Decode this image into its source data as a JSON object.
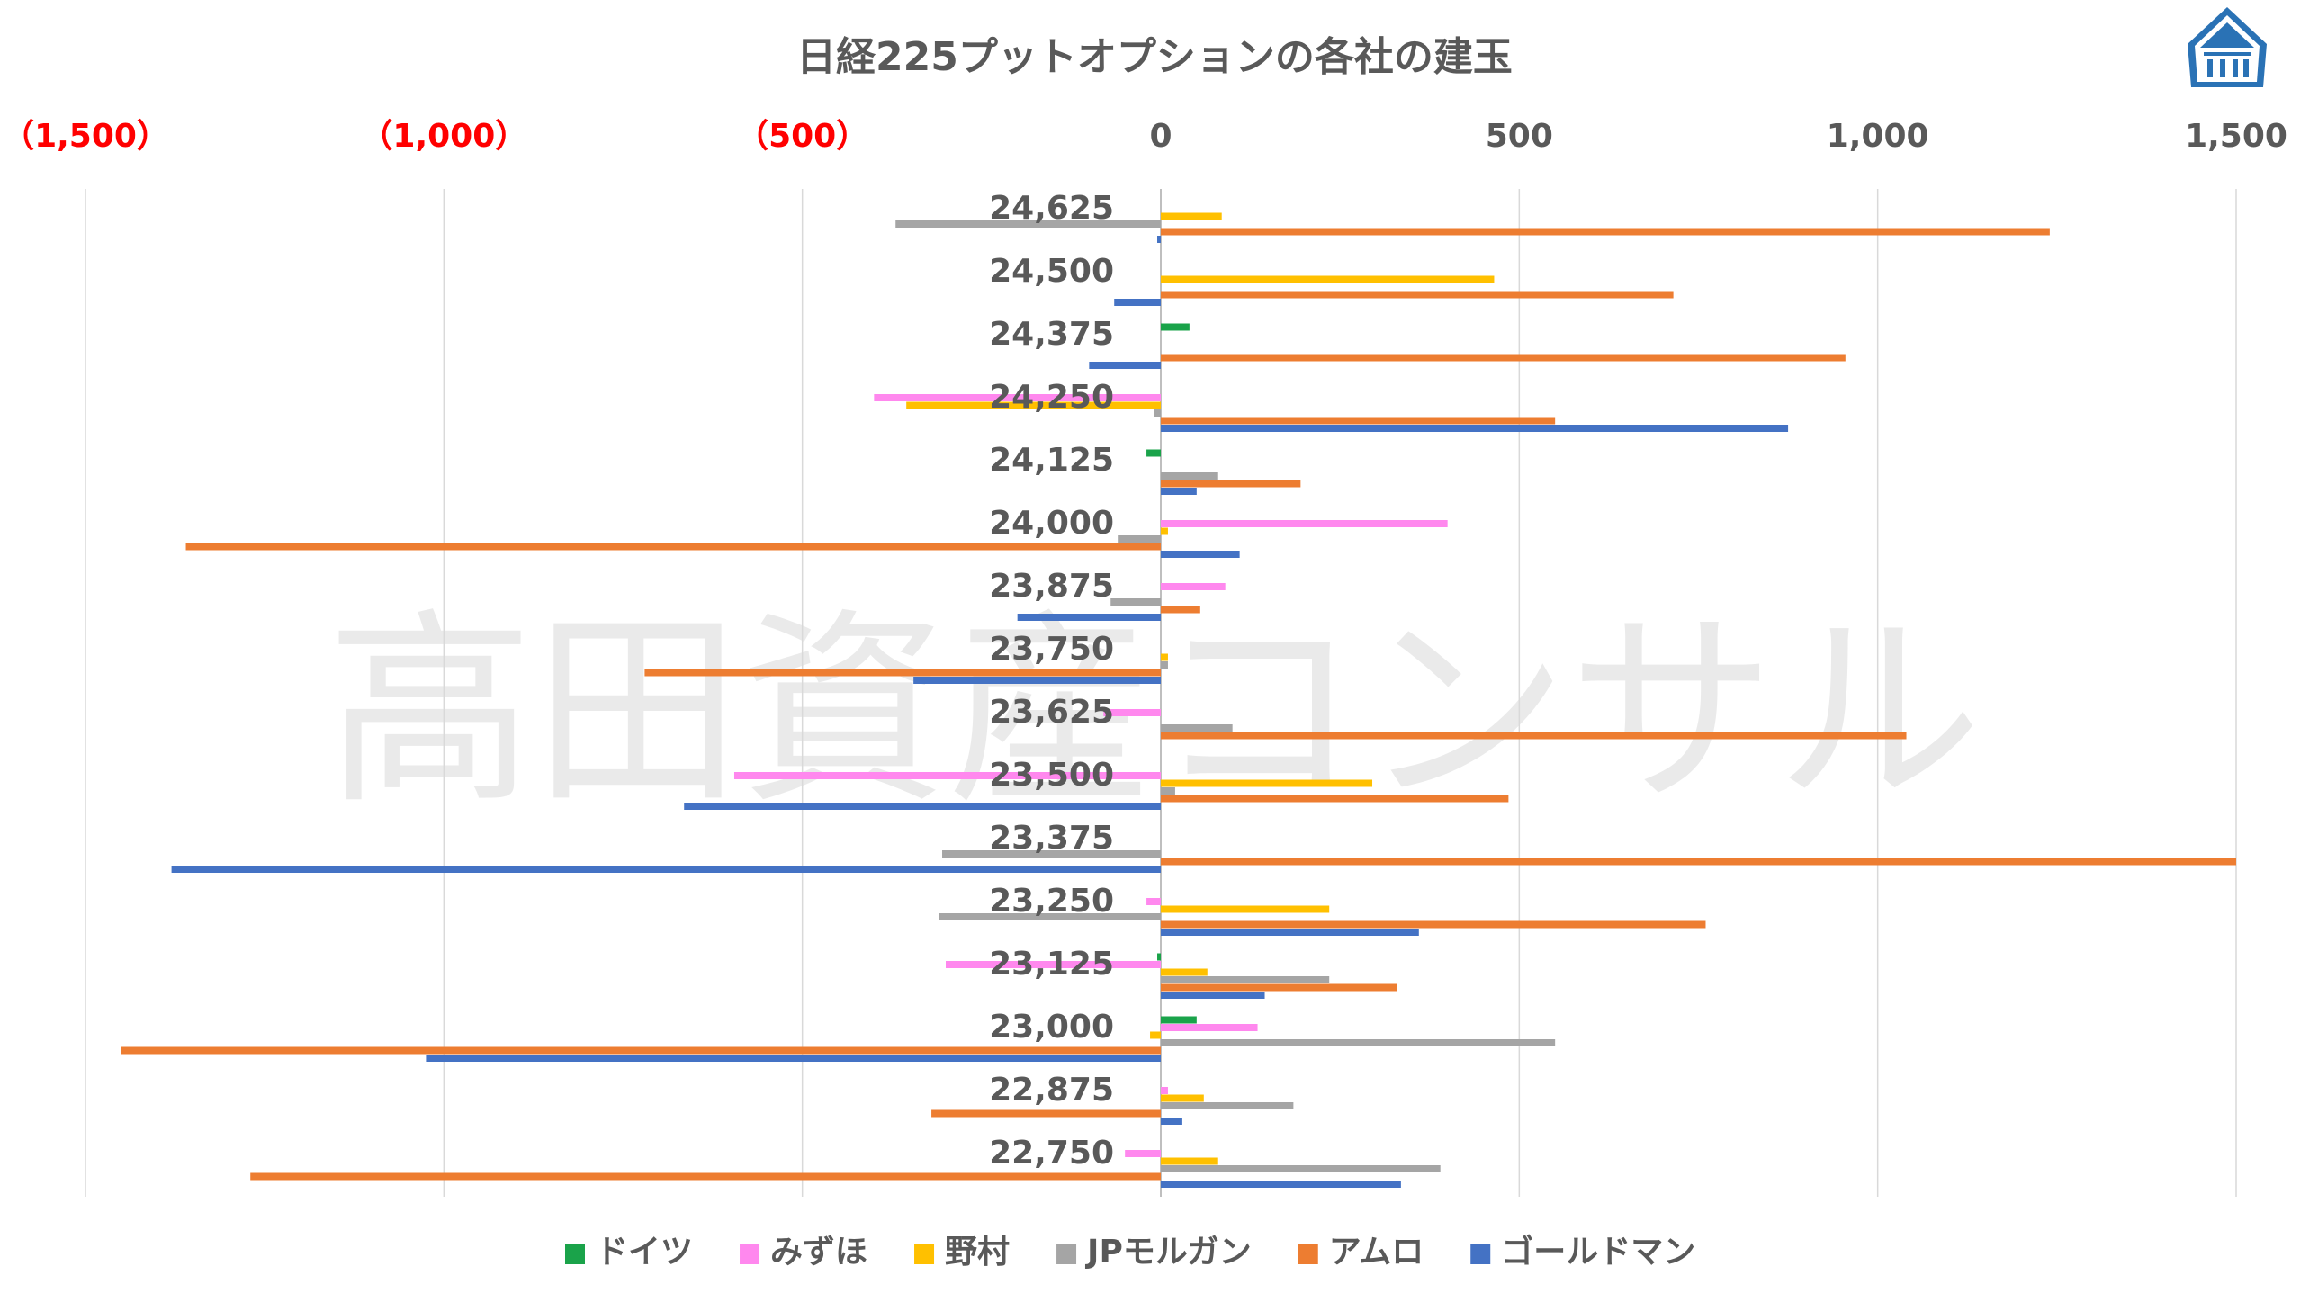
{
  "watermark": "高田資産コンサル",
  "chart_data": {
    "type": "bar",
    "orientation": "horizontal",
    "title": "日経225プットオプションの各社の建玉",
    "xlim": [
      -1500,
      1500
    ],
    "x_ticks": [
      -1500,
      -1000,
      -500,
      0,
      500,
      1000,
      1500
    ],
    "x_tick_labels": [
      "（1,500）",
      "（1,000）",
      "（500）",
      "0",
      "500",
      "1,000",
      "1,500"
    ],
    "grid": true,
    "legend_position": "bottom",
    "categories": [
      "24,625",
      "24,500",
      "24,375",
      "24,250",
      "24,125",
      "24,000",
      "23,875",
      "23,750",
      "23,625",
      "23,500",
      "23,375",
      "23,250",
      "23,125",
      "23,000",
      "22,875",
      "22,750"
    ],
    "series": [
      {
        "name": "ドイツ",
        "color": "#1aa34a",
        "values": [
          0,
          0,
          40,
          0,
          -20,
          0,
          0,
          0,
          0,
          0,
          0,
          0,
          -5,
          50,
          0,
          0
        ]
      },
      {
        "name": "みずほ",
        "color": "#ff88ee",
        "values": [
          0,
          0,
          0,
          -400,
          0,
          400,
          90,
          0,
          -80,
          -595,
          0,
          -20,
          -300,
          135,
          10,
          -50
        ]
      },
      {
        "name": "野村",
        "color": "#ffc000",
        "values": [
          85,
          465,
          0,
          -355,
          0,
          10,
          0,
          10,
          0,
          295,
          0,
          235,
          65,
          -15,
          60,
          80
        ]
      },
      {
        "name": "JPモルガン",
        "color": "#a5a5a5",
        "values": [
          -370,
          0,
          0,
          -10,
          80,
          -60,
          -70,
          10,
          100,
          20,
          -305,
          -310,
          235,
          550,
          185,
          390
        ]
      },
      {
        "name": "アムロ",
        "color": "#ed7d31",
        "values": [
          1240,
          715,
          955,
          550,
          195,
          -1360,
          55,
          -720,
          1040,
          485,
          1500,
          760,
          330,
          -1450,
          -320,
          -1270
        ]
      },
      {
        "name": "ゴールドマン",
        "color": "#4472c4",
        "values": [
          -5,
          -65,
          -100,
          875,
          50,
          110,
          -200,
          -345,
          0,
          -665,
          -1380,
          360,
          145,
          -1025,
          30,
          335
        ]
      }
    ]
  }
}
